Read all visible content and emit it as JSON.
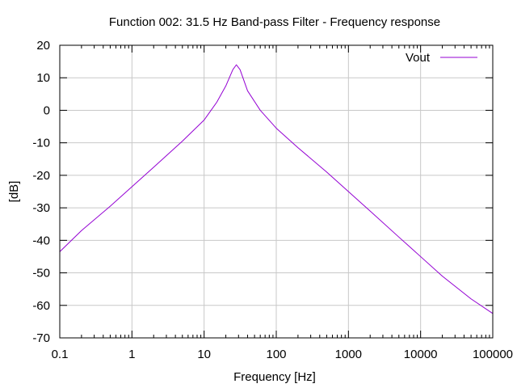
{
  "chart_data": {
    "type": "line",
    "title": "Function 002: 31.5 Hz Band-pass Filter - Frequency response",
    "xlabel": "Frequency [Hz]",
    "ylabel": "[dB]",
    "xscale": "log",
    "xlim": [
      0.1,
      100000
    ],
    "ylim": [
      -70,
      20
    ],
    "grid": true,
    "legend_position": "top-right",
    "x_ticks": [
      {
        "value": 0.1,
        "label": "0.1"
      },
      {
        "value": 1,
        "label": "1"
      },
      {
        "value": 10,
        "label": "10"
      },
      {
        "value": 100,
        "label": "100"
      },
      {
        "value": 1000,
        "label": "1000"
      },
      {
        "value": 10000,
        "label": "10000"
      },
      {
        "value": 100000,
        "label": "100000"
      }
    ],
    "y_ticks": [
      {
        "value": 20,
        "label": "20"
      },
      {
        "value": 10,
        "label": "10"
      },
      {
        "value": 0,
        "label": "0"
      },
      {
        "value": -10,
        "label": "-10"
      },
      {
        "value": -20,
        "label": "-20"
      },
      {
        "value": -30,
        "label": "-30"
      },
      {
        "value": -40,
        "label": "-40"
      },
      {
        "value": -50,
        "label": "-50"
      },
      {
        "value": -60,
        "label": "-60"
      },
      {
        "value": -70,
        "label": "-70"
      }
    ],
    "series": [
      {
        "name": "Vout",
        "color": "#9400d3",
        "x": [
          0.1,
          0.2,
          0.5,
          1,
          2,
          5,
          10,
          15,
          20,
          25,
          28,
          31.5,
          40,
          60,
          100,
          200,
          500,
          1000,
          2000,
          5000,
          10000,
          20000,
          50000,
          100000
        ],
        "y": [
          -43.5,
          -37,
          -29.5,
          -23.5,
          -17.5,
          -9.5,
          -3,
          2.5,
          7.5,
          12.5,
          14,
          12.5,
          6,
          0,
          -5.5,
          -11.5,
          -19,
          -25,
          -31,
          -39,
          -45,
          -51,
          -58,
          -62.5
        ]
      }
    ]
  }
}
